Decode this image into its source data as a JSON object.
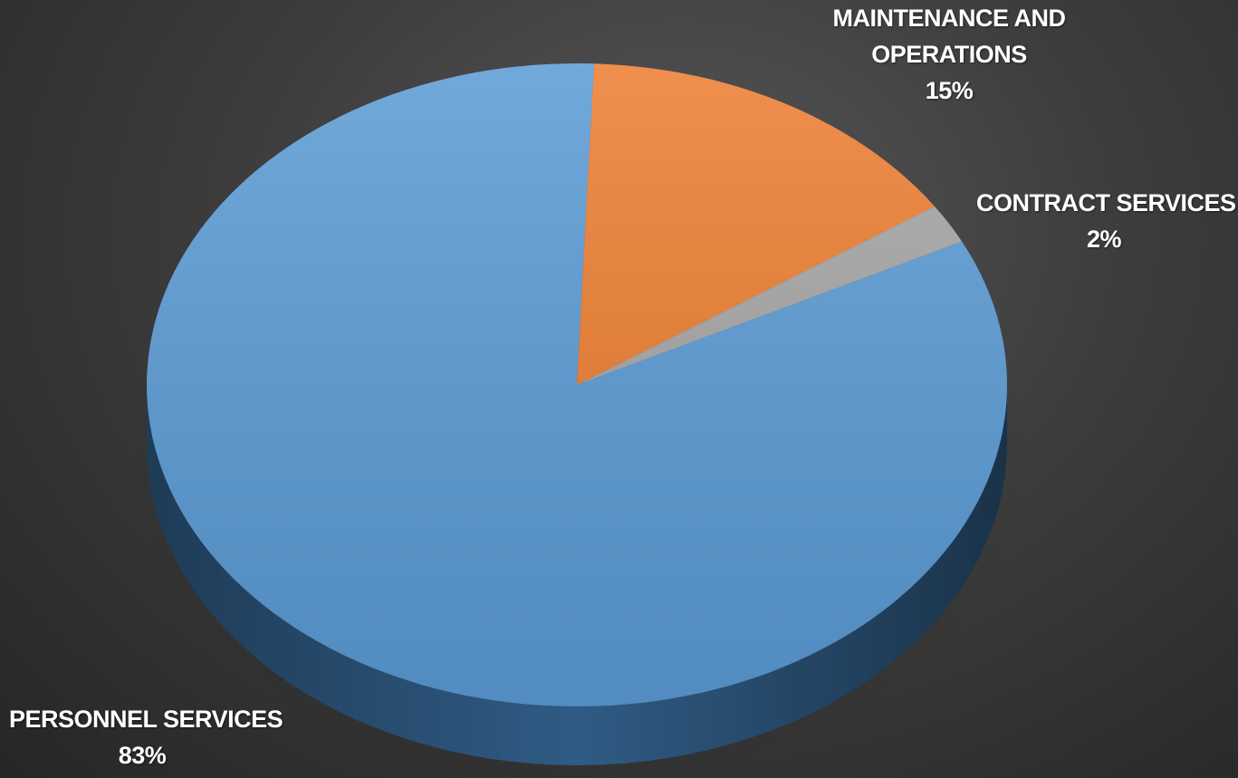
{
  "chart_data": {
    "type": "pie",
    "style": "3d",
    "title": "",
    "categories": [
      "PERSONNEL SERVICES",
      "MAINTENANCE AND OPERATIONS",
      "CONTRACT SERVICES"
    ],
    "values": [
      83,
      15,
      2
    ],
    "value_labels": [
      "83%",
      "15%",
      "2%"
    ],
    "label_lines": [
      [
        "PERSONNEL SERVICES"
      ],
      [
        "MAINTENANCE AND",
        "OPERATIONS"
      ],
      [
        "CONTRACT SERVICES"
      ]
    ],
    "colors": [
      "#5b9bd5",
      "#ed7d31",
      "#a5a5a5"
    ],
    "side_colors": [
      "#2f5b84",
      "#a9551c",
      "#6e6e6e"
    ],
    "legend": "none",
    "grid": false
  }
}
